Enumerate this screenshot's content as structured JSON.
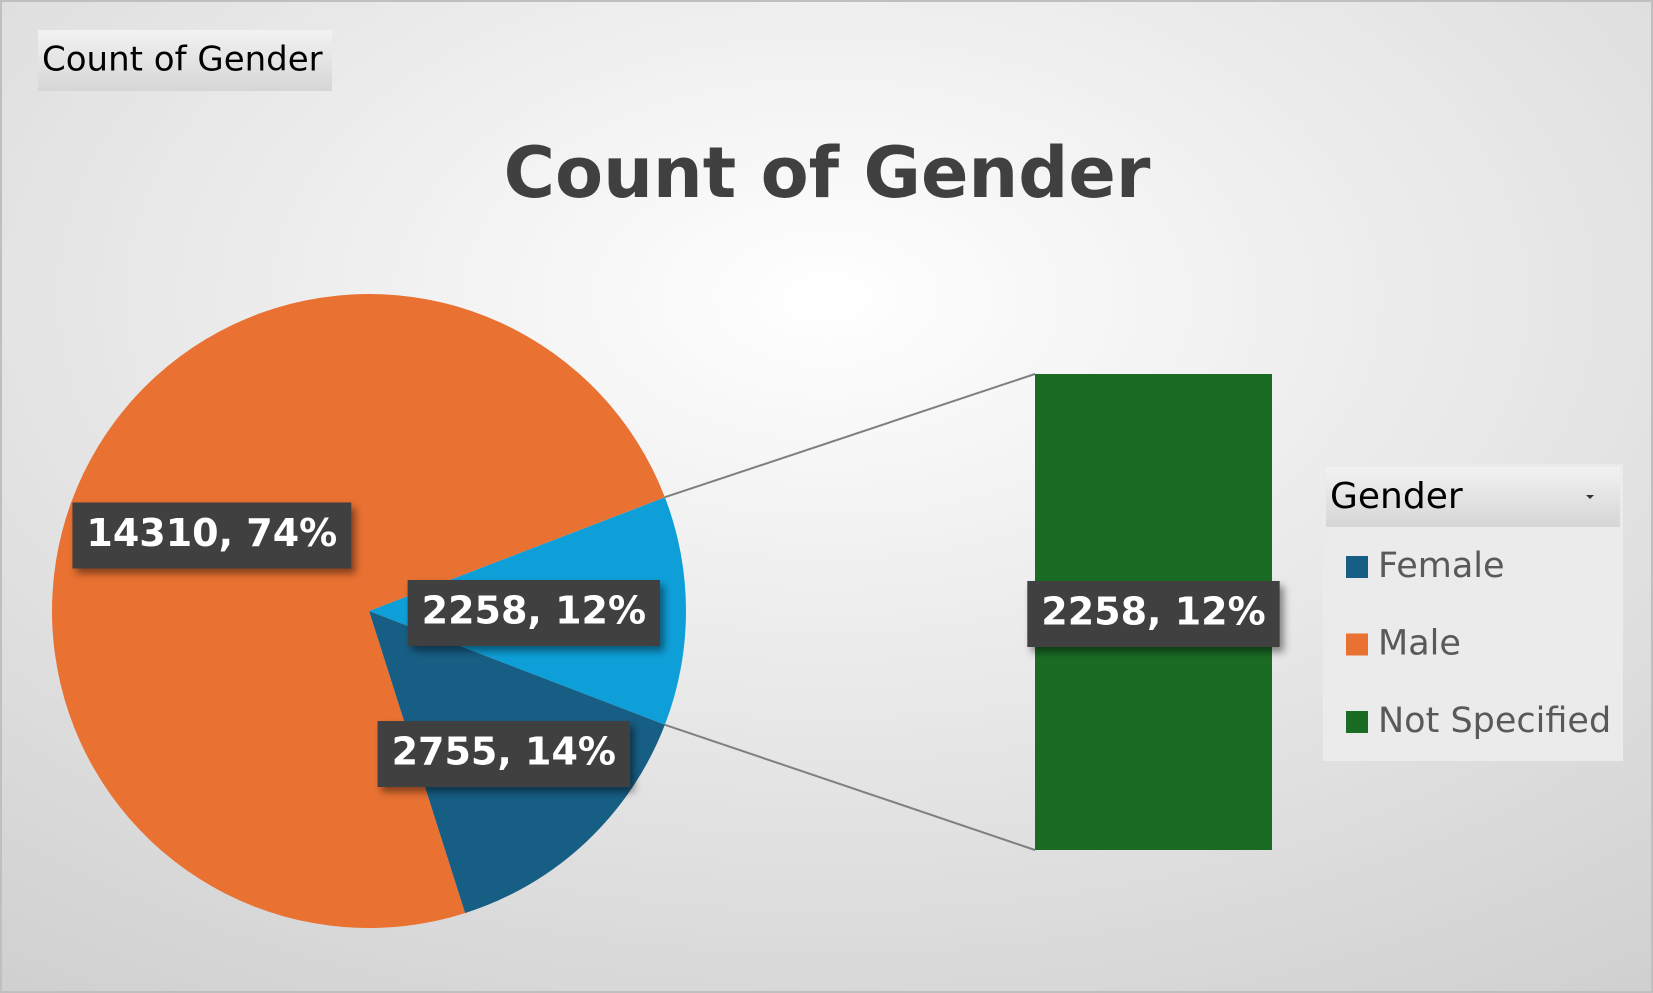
{
  "field_button": "Count of Gender",
  "chart_data": {
    "type": "bar_of_pie",
    "title": "Count of Gender",
    "categories": [
      "Female",
      "Male",
      "Not Specified"
    ],
    "values": [
      2755,
      14310,
      2258
    ],
    "value_labels": [
      "2755, 14%",
      "14310, 74%",
      "2258, 12%"
    ],
    "colors": [
      "#175e85",
      "#e97132",
      "#1a6b24"
    ],
    "other_color": "#0e9fd8",
    "legend_title": "Gender",
    "legend": "right"
  }
}
